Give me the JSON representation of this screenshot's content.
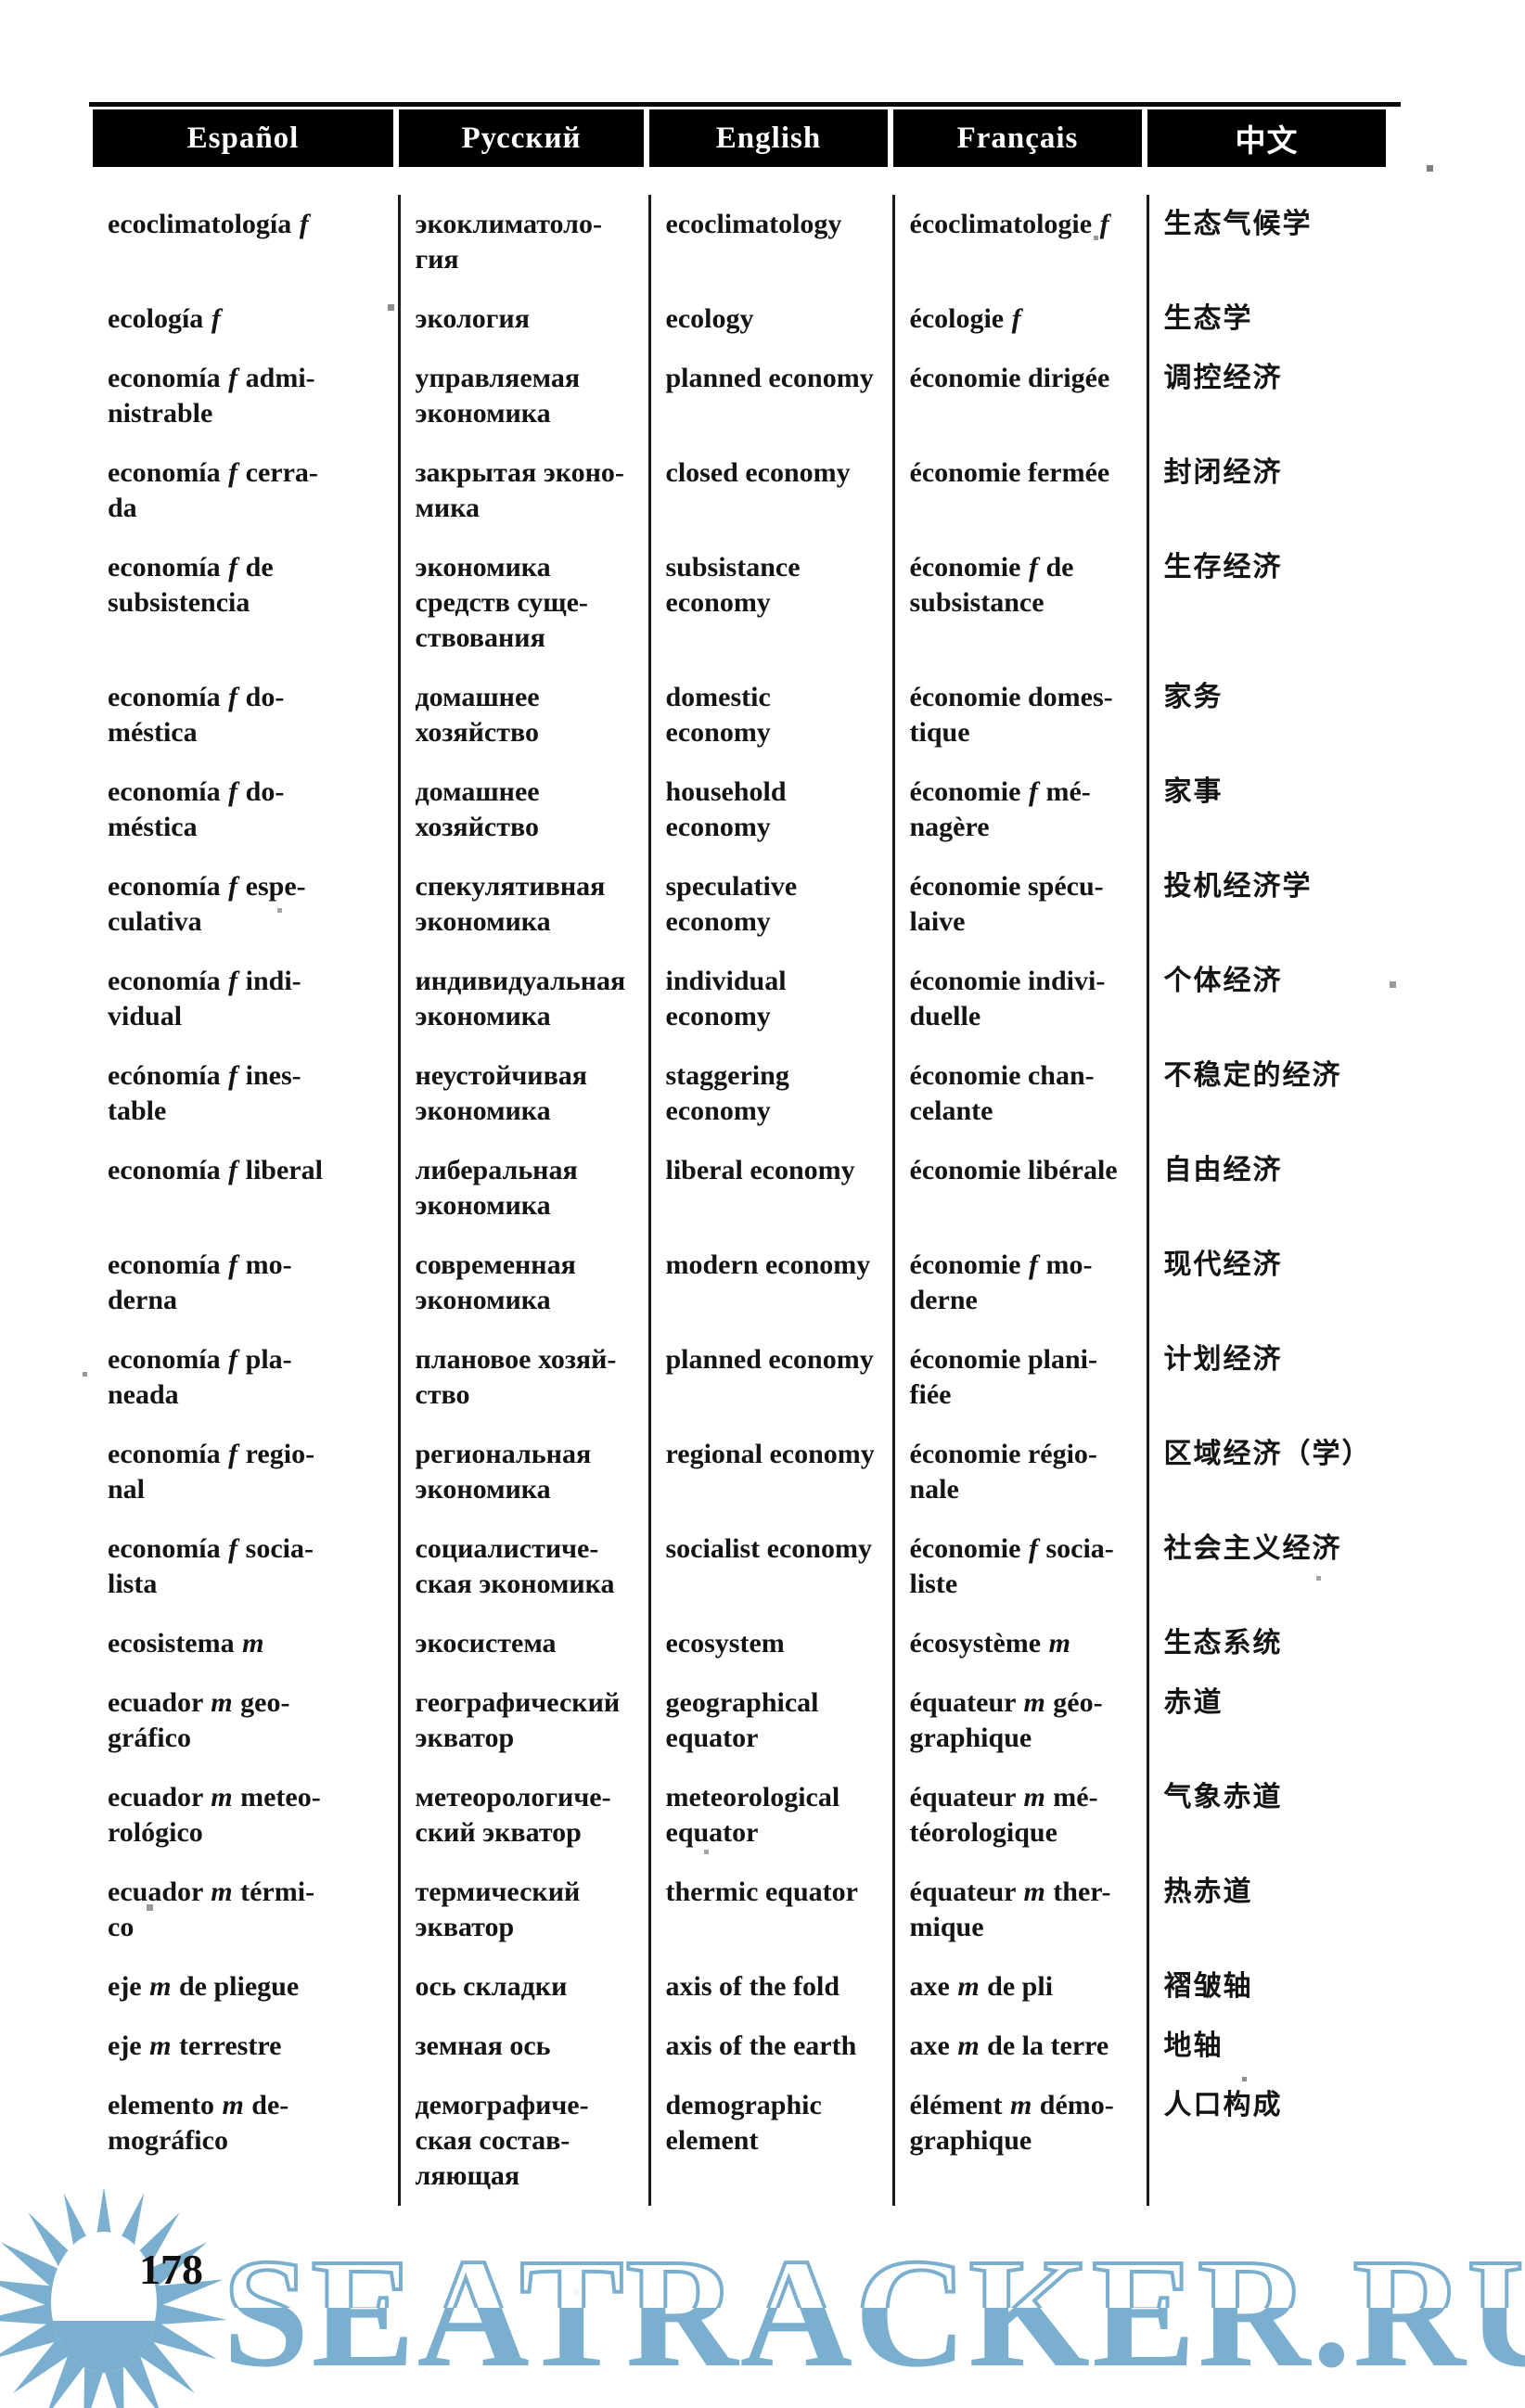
{
  "table": {
    "headers": [
      "Español",
      "Русский",
      "English",
      "Français",
      "中文"
    ],
    "rows": [
      {
        "es": "ecoclimatología f",
        "ru": "экоклиматоло-\nгия",
        "en": "ecoclimatology",
        "fr": "écoclimatologie f",
        "zh": "生态气候学"
      },
      {
        "es": "ecología f",
        "ru": "экология",
        "en": "ecology",
        "fr": "écologie f",
        "zh": "生态学"
      },
      {
        "es": "economía f admi-\nnistrable",
        "ru": "управляемая\nэкономика",
        "en": "planned economy",
        "fr": "économie dirigée",
        "zh": "调控经济"
      },
      {
        "es": "economía f cerra-\nda",
        "ru": "закрытая эконо-\nмика",
        "en": "closed economy",
        "fr": "économie fermée",
        "zh": "封闭经济"
      },
      {
        "es": "economía f de\nsubsistencia",
        "ru": "экономика\nсредств суще-\nствования",
        "en": "subsistance\neconomy",
        "fr": "économie f de\nsubsistance",
        "zh": "生存经济"
      },
      {
        "es": "economía f do-\nméstica",
        "ru": "домашнее\nхозяйство",
        "en": "domestic\neconomy",
        "fr": "économie domes-\ntique",
        "zh": "家务"
      },
      {
        "es": "economía f do-\nméstica",
        "ru": "домашнее\nхозяйство",
        "en": "household\neconomy",
        "fr": "économie f mé-\nnagère",
        "zh": "家事"
      },
      {
        "es": "economía f espe-\nculativa",
        "ru": "спекулятивная\nэкономика",
        "en": "speculative\neconomy",
        "fr": "économie spécu-\nlaive",
        "zh": "投机经济学"
      },
      {
        "es": "economía f indi-\nvidual",
        "ru": "индивидуальная\nэкономика",
        "en": "individual\neconomy",
        "fr": "économie indivi-\nduelle",
        "zh": "个体经济"
      },
      {
        "es": "ecónomía f ines-\ntable",
        "ru": "неустойчивая\nэкономика",
        "en": "staggering\neconomy",
        "fr": "économie chan-\ncelante",
        "zh": "不稳定的经济"
      },
      {
        "es": "economía f liberal",
        "ru": "либеральная\nэкономика",
        "en": "liberal economy",
        "fr": "économie libérale",
        "zh": "自由经济"
      },
      {
        "es": "economía f mo-\nderna",
        "ru": "современная\nэкономика",
        "en": "modern economy",
        "fr": "économie f mo-\nderne",
        "zh": "现代经济"
      },
      {
        "es": "economía f pla-\nneada",
        "ru": "плановое хозяй-\nство",
        "en": "planned economy",
        "fr": "économie plani-\nfiée",
        "zh": "计划经济"
      },
      {
        "es": "economía f regio-\nnal",
        "ru": "региональная\nэкономика",
        "en": "regional economy",
        "fr": "économie régio-\nnale",
        "zh": "区域经济（学）"
      },
      {
        "es": "economía f socia-\nlista",
        "ru": "социалистиче-\nская экономика",
        "en": "socialist economy",
        "fr": "économie f socia-\nliste",
        "zh": "社会主义经济"
      },
      {
        "es": "ecosistema m",
        "ru": "экосистема",
        "en": "ecosystem",
        "fr": "écosystème m",
        "zh": "生态系统"
      },
      {
        "es": "ecuador m geo-\ngráfico",
        "ru": "географический\nэкватор",
        "en": "geographical\nequator",
        "fr": "équateur m géo-\ngraphique",
        "zh": "赤道"
      },
      {
        "es": "ecuador m meteo-\nrológico",
        "ru": "метеорологиче-\nский экватор",
        "en": "meteorological\nequator",
        "fr": "équateur m mé-\ntéorologique",
        "zh": "气象赤道"
      },
      {
        "es": "ecuador m térmi-\nco",
        "ru": "термический\nэкватор",
        "en": "thermic equator",
        "fr": "équateur m ther-\nmique",
        "zh": "热赤道"
      },
      {
        "es": "eje m de pliegue",
        "ru": "ось складки",
        "en": "axis of the fold",
        "fr": "axe m de pli",
        "zh": "褶皱轴"
      },
      {
        "es": "eje m terrestre",
        "ru": "земная ось",
        "en": "axis of the earth",
        "fr": "axe m de la terre",
        "zh": "地轴"
      },
      {
        "es": "elemento m de-\nmográfico",
        "ru": "демографиче-\nская состав-\nляющая",
        "en": "demographic\nelement",
        "fr": "élément m démo-\ngraphique",
        "zh": "人口构成"
      }
    ]
  },
  "footer": {
    "page_number": "178"
  },
  "watermark": {
    "text": "SEATRACKER.RU",
    "color": "#72a9cd"
  },
  "colors": {
    "paper": "#ffffff",
    "ink": "#141414",
    "header_bg": "#000000",
    "header_text": "#ffffff"
  }
}
